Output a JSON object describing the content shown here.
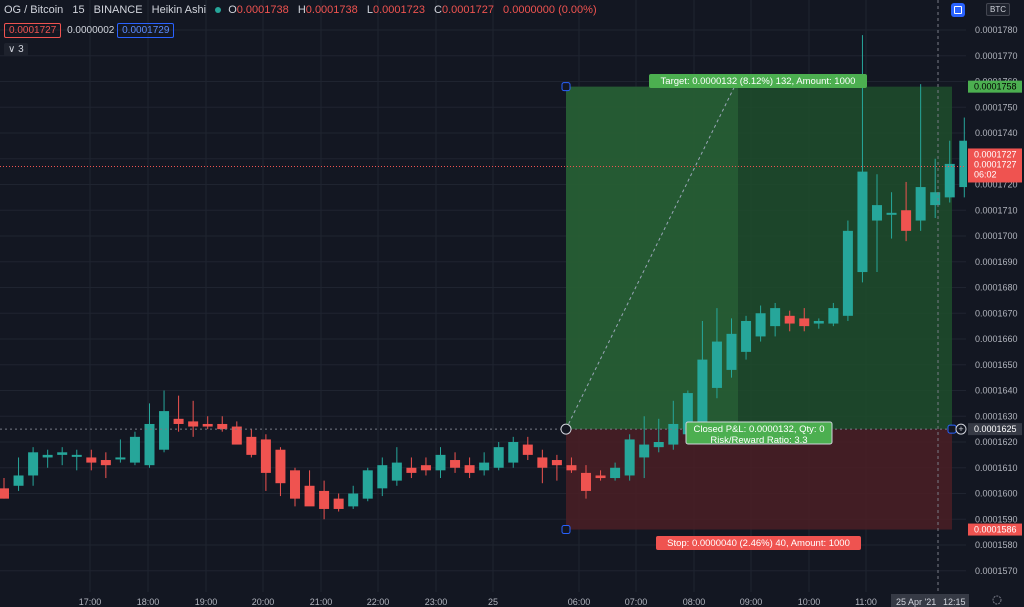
{
  "symbol": {
    "title": "OG / Bitcoin",
    "interval": "15",
    "exchange": "BINANCE",
    "chart_style": "Heikin Ashi",
    "open": "0.0001738",
    "high": "0.0001738",
    "low": "0.0001723",
    "close": "0.0001727",
    "change": "0.0000000 (0.00%)",
    "o_label": "O",
    "h_label": "H",
    "l_label": "L",
    "c_label": "C"
  },
  "order": {
    "sell": "0.0001727",
    "spread": "0.0000002",
    "buy": "0.0001729"
  },
  "collapse_count": "3",
  "currency_button": "BTC",
  "price_axis": {
    "ticks": [
      "0.0001780",
      "0.0001770",
      "0.0001760",
      "0.0001750",
      "0.0001740",
      "0.0001730",
      "0.0001720",
      "0.0001710",
      "0.0001700",
      "0.0001690",
      "0.0001680",
      "0.0001670",
      "0.0001660",
      "0.0001650",
      "0.0001640",
      "0.0001630",
      "0.0001620",
      "0.0001610",
      "0.0001600",
      "0.0001590",
      "0.0001580",
      "0.0001570"
    ],
    "tick_values": [
      0.000178,
      0.000177,
      0.000176,
      0.000175,
      0.000174,
      0.000173,
      0.000172,
      0.000171,
      0.00017,
      0.000169,
      0.000168,
      0.000167,
      0.000166,
      0.000165,
      0.000164,
      0.000163,
      0.000162,
      0.000161,
      0.00016,
      0.000159,
      0.000158,
      0.000157
    ],
    "target_label": "0.0001758",
    "current_price": "0.0001727",
    "current_price_2": "0.0001727",
    "countdown": "06:02",
    "entry_label": "0.0001625",
    "stop_label": "0.0001586"
  },
  "time_axis": {
    "ticks": [
      "17:00",
      "18:00",
      "19:00",
      "20:00",
      "21:00",
      "22:00",
      "23:00",
      "25",
      "06:00",
      "07:00",
      "08:00",
      "09:00",
      "10:00",
      "11:00"
    ],
    "date_label": "25 Apr '21",
    "time_label": "12:15"
  },
  "position": {
    "target_text": "Target: 0.0000132 (8.12%) 132, Amount: 1000",
    "stop_text": "Stop: 0.0000040 (2.46%) 40, Amount: 1000",
    "pnl_text": "Closed P&L: 0.0000132, Qty: 0",
    "rr_text": "Risk/Reward Ratio: 3.3",
    "entry": 0.0001625,
    "target": 0.0001758,
    "stop": 0.0001586
  },
  "colors": {
    "up": "#26a69a",
    "down": "#ef5350",
    "bg": "#131722",
    "grid": "#1f2430",
    "profit": "#1e4d2b",
    "loss": "#4b1f24",
    "accent": "#2962ff"
  },
  "chart_data": {
    "type": "candlestick",
    "candles": [
      {
        "o": 0.0001602,
        "h": 0.0001606,
        "l": 0.0001598,
        "c": 0.0001598
      },
      {
        "o": 0.0001603,
        "h": 0.0001614,
        "l": 0.0001601,
        "c": 0.0001607
      },
      {
        "o": 0.0001607,
        "h": 0.0001618,
        "l": 0.0001603,
        "c": 0.0001616
      },
      {
        "o": 0.0001614,
        "h": 0.0001617,
        "l": 0.000161,
        "c": 0.0001615
      },
      {
        "o": 0.0001615,
        "h": 0.0001618,
        "l": 0.0001611,
        "c": 0.0001616
      },
      {
        "o": 0.0001615,
        "h": 0.0001617,
        "l": 0.0001609,
        "c": 0.0001615
      },
      {
        "o": 0.0001614,
        "h": 0.0001617,
        "l": 0.0001609,
        "c": 0.0001612
      },
      {
        "o": 0.0001613,
        "h": 0.0001616,
        "l": 0.0001606,
        "c": 0.0001611
      },
      {
        "o": 0.0001614,
        "h": 0.0001621,
        "l": 0.0001612,
        "c": 0.0001614
      },
      {
        "o": 0.0001612,
        "h": 0.0001624,
        "l": 0.0001611,
        "c": 0.0001622
      },
      {
        "o": 0.0001611,
        "h": 0.0001635,
        "l": 0.000161,
        "c": 0.0001627
      },
      {
        "o": 0.0001617,
        "h": 0.000164,
        "l": 0.0001616,
        "c": 0.0001632
      },
      {
        "o": 0.0001629,
        "h": 0.0001638,
        "l": 0.0001624,
        "c": 0.0001627
      },
      {
        "o": 0.0001628,
        "h": 0.0001636,
        "l": 0.0001622,
        "c": 0.0001626
      },
      {
        "o": 0.0001627,
        "h": 0.000163,
        "l": 0.0001625,
        "c": 0.0001626
      },
      {
        "o": 0.0001627,
        "h": 0.000163,
        "l": 0.0001624,
        "c": 0.0001625
      },
      {
        "o": 0.0001626,
        "h": 0.0001628,
        "l": 0.0001621,
        "c": 0.0001619
      },
      {
        "o": 0.0001622,
        "h": 0.0001625,
        "l": 0.0001614,
        "c": 0.0001615
      },
      {
        "o": 0.0001621,
        "h": 0.0001623,
        "l": 0.0001601,
        "c": 0.0001608
      },
      {
        "o": 0.0001617,
        "h": 0.0001618,
        "l": 0.0001599,
        "c": 0.0001604
      },
      {
        "o": 0.0001609,
        "h": 0.000161,
        "l": 0.0001595,
        "c": 0.0001598
      },
      {
        "o": 0.0001603,
        "h": 0.0001609,
        "l": 0.0001596,
        "c": 0.0001595
      },
      {
        "o": 0.0001601,
        "h": 0.0001605,
        "l": 0.000159,
        "c": 0.0001594
      },
      {
        "o": 0.0001598,
        "h": 0.00016,
        "l": 0.0001593,
        "c": 0.0001594
      },
      {
        "o": 0.0001595,
        "h": 0.0001603,
        "l": 0.0001594,
        "c": 0.00016
      },
      {
        "o": 0.0001598,
        "h": 0.000161,
        "l": 0.0001597,
        "c": 0.0001609
      },
      {
        "o": 0.0001602,
        "h": 0.0001614,
        "l": 0.0001599,
        "c": 0.0001611
      },
      {
        "o": 0.0001605,
        "h": 0.0001618,
        "l": 0.0001603,
        "c": 0.0001612
      },
      {
        "o": 0.000161,
        "h": 0.0001614,
        "l": 0.0001606,
        "c": 0.0001608
      },
      {
        "o": 0.0001611,
        "h": 0.0001614,
        "l": 0.0001607,
        "c": 0.0001609
      },
      {
        "o": 0.0001609,
        "h": 0.0001618,
        "l": 0.0001606,
        "c": 0.0001615
      },
      {
        "o": 0.0001613,
        "h": 0.0001616,
        "l": 0.0001608,
        "c": 0.000161
      },
      {
        "o": 0.0001611,
        "h": 0.0001614,
        "l": 0.0001606,
        "c": 0.0001608
      },
      {
        "o": 0.0001609,
        "h": 0.0001616,
        "l": 0.0001607,
        "c": 0.0001612
      },
      {
        "o": 0.000161,
        "h": 0.000162,
        "l": 0.0001609,
        "c": 0.0001618
      },
      {
        "o": 0.0001612,
        "h": 0.0001622,
        "l": 0.000161,
        "c": 0.000162
      },
      {
        "o": 0.0001619,
        "h": 0.0001622,
        "l": 0.0001613,
        "c": 0.0001615
      },
      {
        "o": 0.0001614,
        "h": 0.0001617,
        "l": 0.0001604,
        "c": 0.000161
      },
      {
        "o": 0.0001613,
        "h": 0.0001615,
        "l": 0.0001605,
        "c": 0.0001611
      },
      {
        "o": 0.0001611,
        "h": 0.0001614,
        "l": 0.0001608,
        "c": 0.0001609
      },
      {
        "o": 0.0001608,
        "h": 0.0001611,
        "l": 0.0001598,
        "c": 0.0001601
      },
      {
        "o": 0.0001607,
        "h": 0.0001609,
        "l": 0.0001605,
        "c": 0.0001606
      },
      {
        "o": 0.0001606,
        "h": 0.0001612,
        "l": 0.0001605,
        "c": 0.000161
      },
      {
        "o": 0.0001607,
        "h": 0.0001623,
        "l": 0.0001605,
        "c": 0.0001621
      },
      {
        "o": 0.0001614,
        "h": 0.000163,
        "l": 0.0001606,
        "c": 0.0001619
      },
      {
        "o": 0.0001618,
        "h": 0.0001629,
        "l": 0.0001616,
        "c": 0.000162
      },
      {
        "o": 0.0001619,
        "h": 0.0001636,
        "l": 0.0001617,
        "c": 0.0001627
      },
      {
        "o": 0.0001623,
        "h": 0.000164,
        "l": 0.0001621,
        "c": 0.0001639
      },
      {
        "o": 0.0001627,
        "h": 0.0001667,
        "l": 0.0001626,
        "c": 0.0001652
      },
      {
        "o": 0.0001641,
        "h": 0.0001672,
        "l": 0.0001637,
        "c": 0.0001659
      },
      {
        "o": 0.0001648,
        "h": 0.0001668,
        "l": 0.0001645,
        "c": 0.0001662
      },
      {
        "o": 0.0001655,
        "h": 0.0001669,
        "l": 0.0001652,
        "c": 0.0001667
      },
      {
        "o": 0.0001661,
        "h": 0.0001673,
        "l": 0.0001659,
        "c": 0.000167
      },
      {
        "o": 0.0001665,
        "h": 0.0001674,
        "l": 0.0001661,
        "c": 0.0001672
      },
      {
        "o": 0.0001669,
        "h": 0.0001671,
        "l": 0.0001663,
        "c": 0.0001666
      },
      {
        "o": 0.0001668,
        "h": 0.0001672,
        "l": 0.0001663,
        "c": 0.0001665
      },
      {
        "o": 0.0001666,
        "h": 0.0001668,
        "l": 0.0001664,
        "c": 0.0001667
      },
      {
        "o": 0.0001666,
        "h": 0.0001674,
        "l": 0.0001665,
        "c": 0.0001672
      },
      {
        "o": 0.0001669,
        "h": 0.0001706,
        "l": 0.0001667,
        "c": 0.0001702
      },
      {
        "o": 0.0001686,
        "h": 0.0001778,
        "l": 0.0001682,
        "c": 0.0001725
      },
      {
        "o": 0.0001706,
        "h": 0.0001724,
        "l": 0.0001686,
        "c": 0.0001712
      },
      {
        "o": 0.0001709,
        "h": 0.0001717,
        "l": 0.0001699,
        "c": 0.0001709
      },
      {
        "o": 0.000171,
        "h": 0.0001721,
        "l": 0.0001698,
        "c": 0.0001702
      },
      {
        "o": 0.0001706,
        "h": 0.0001759,
        "l": 0.0001702,
        "c": 0.0001719
      },
      {
        "o": 0.0001712,
        "h": 0.000173,
        "l": 0.0001707,
        "c": 0.0001717
      },
      {
        "o": 0.0001715,
        "h": 0.0001737,
        "l": 0.0001713,
        "c": 0.0001728
      },
      {
        "o": 0.0001719,
        "h": 0.0001746,
        "l": 0.0001715,
        "c": 0.0001737
      },
      {
        "o": 0.0001725,
        "h": 0.0001759,
        "l": 0.0001723,
        "c": 0.0001742
      },
      {
        "o": 0.0001733,
        "h": 0.0001763,
        "l": 0.0001728,
        "c": 0.0001752
      },
      {
        "o": 0.0001741,
        "h": 0.0001768,
        "l": 0.0001739,
        "c": 0.0001758
      },
      {
        "o": 0.0001747,
        "h": 0.0001768,
        "l": 0.0001745,
        "c": 0.000176
      },
      {
        "o": 0.000176,
        "h": 0.0001762,
        "l": 0.0001742,
        "c": 0.0001746
      },
      {
        "o": 0.0001753,
        "h": 0.0001765,
        "l": 0.0001716,
        "c": 0.0001736
      },
      {
        "o": 0.0001745,
        "h": 0.0001747,
        "l": 0.000172,
        "c": 0.0001726
      },
      {
        "o": 0.0001738,
        "h": 0.0001738,
        "l": 0.0001723,
        "c": 0.0001727
      }
    ],
    "ylim": [
      0.0001565,
      0.000179
    ],
    "grid": true
  }
}
